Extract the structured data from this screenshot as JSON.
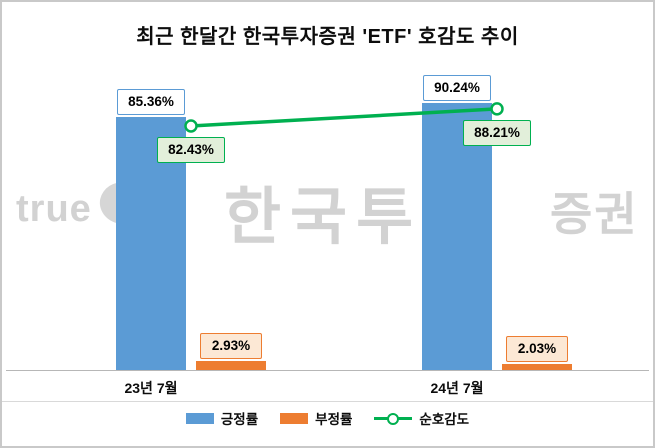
{
  "title": "최근 한달간 한국투자증권 'ETF' 호감도 추이",
  "watermark": {
    "part1": "true",
    "part2": "한국투자",
    "part3": "증권"
  },
  "chart_data": {
    "type": "bar+line",
    "title": "최근 한달간 한국투자증권 'ETF' 호감도 추이",
    "categories": [
      "23년 7월",
      "24년 7월"
    ],
    "series": [
      {
        "name": "긍정률",
        "type": "bar",
        "color": "#5B9BD5",
        "values": [
          85.36,
          90.24
        ],
        "labels": [
          "85.36%",
          "90.24%"
        ]
      },
      {
        "name": "부정률",
        "type": "bar",
        "color": "#ED7D31",
        "values": [
          2.93,
          2.03
        ],
        "labels": [
          "2.93%",
          "2.03%"
        ]
      },
      {
        "name": "순호감도",
        "type": "line",
        "color": "#00B050",
        "values": [
          82.43,
          88.21
        ],
        "labels": [
          "82.43%",
          "88.21%"
        ]
      }
    ],
    "xlabel": "",
    "ylabel": "",
    "ylim": [
      0,
      100
    ],
    "grid": false,
    "legend_position": "bottom"
  }
}
